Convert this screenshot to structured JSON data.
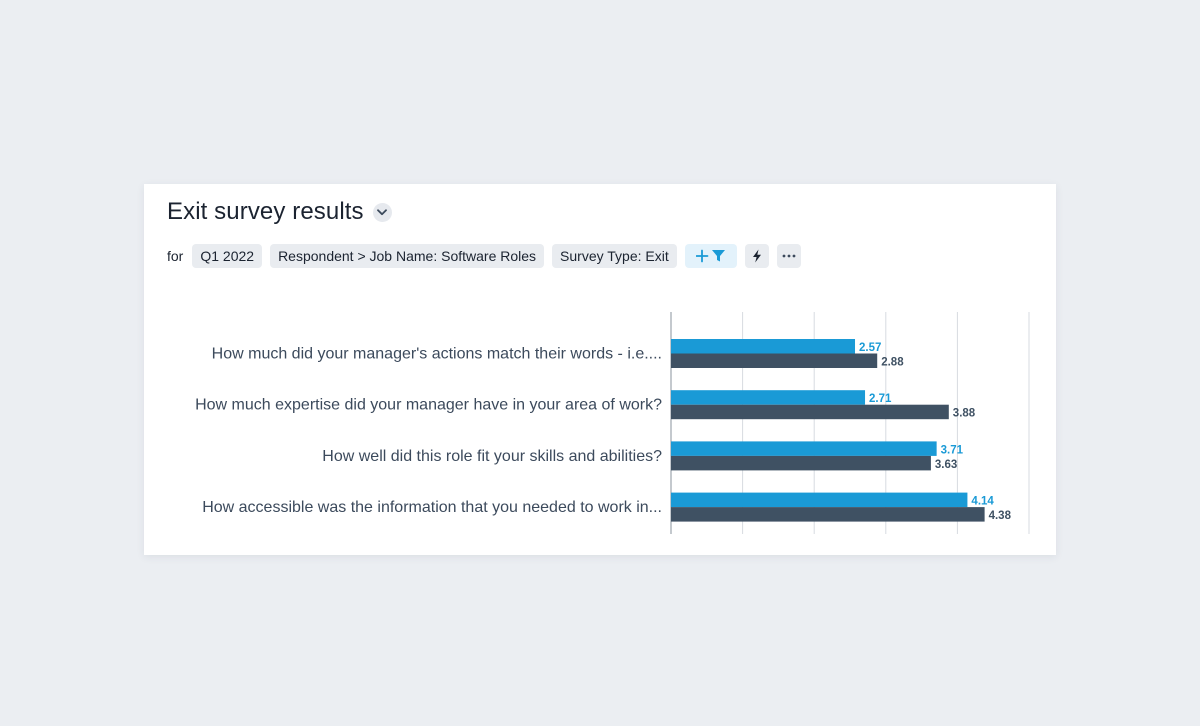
{
  "widget": {
    "title": "Exit survey results",
    "dropdown_icon": "chevron-down-icon"
  },
  "filters": {
    "for_label": "for",
    "chips": [
      "Q1 2022",
      "Respondent > Job Name: Software Roles",
      "Survey Type: Exit"
    ],
    "add_filter_icon": "plus-filter-icon",
    "bolt_icon": "lightning-icon",
    "more_icon": "ellipsis-icon"
  },
  "colors": {
    "series_primary": "#1a9ad6",
    "series_secondary": "#3f5163",
    "grid": "#d7dbe0",
    "axis": "#8a939e"
  },
  "chart_data": {
    "type": "bar",
    "orientation": "horizontal",
    "categories": [
      "How much did your manager's actions match their words - i.e....",
      "How much expertise did your manager have in your area of work?",
      "How well did this role fit your skills and abilities?",
      "How accessible was the information that you needed to work in..."
    ],
    "series": [
      {
        "values": [
          2.57,
          2.71,
          3.71,
          4.14
        ],
        "color": "#1a9ad6"
      },
      {
        "values": [
          2.88,
          3.88,
          3.63,
          4.38
        ],
        "color": "#3f5163"
      }
    ],
    "xlim": [
      0,
      5
    ],
    "grid": true,
    "tick_labels_shown": false
  }
}
